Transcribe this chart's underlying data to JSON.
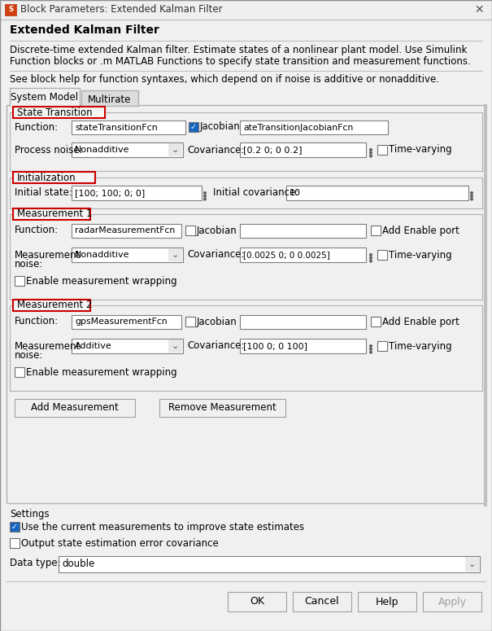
{
  "title_bar": "Block Parameters: Extended Kalman Filter",
  "header_title": "Extended Kalman Filter",
  "desc1": "Discrete-time extended Kalman filter. Estimate states of a nonlinear plant model. Use Simulink",
  "desc2": "Function blocks or .m MATLAB Functions to specify state transition and measurement functions.",
  "desc3": "See block help for function syntaxes, which depend on if noise is additive or nonadditive.",
  "tab1": "System Model",
  "tab2": "Multirate",
  "section1": "State Transition",
  "section2": "Initialization",
  "section3": "Measurement 1",
  "section4": "Measurement 2",
  "func_label": "Function:",
  "func_value": "stateTransitionFcn",
  "jacobian_label": "Jacobian",
  "jacobian_value": "ateTransitionJacobianFcn",
  "process_noise_label": "Process noise:",
  "process_noise_value": "Nonadditive",
  "cov_label": "Covariance:",
  "cov_value1": "[0.2 0; 0 0.2]",
  "time_varying": "Time-varying",
  "init_state_label": "Initial state:",
  "init_state_value": "[100; 100; 0; 0]",
  "init_cov_label": "Initial covariance:",
  "init_cov_value": "10",
  "m1_func": "radarMeasurementFcn",
  "m1_noise": "Nonadditive",
  "m1_cov": "[0.0025 0; 0 0.0025]",
  "add_enable": "Add Enable port",
  "enable_wrap": "Enable measurement wrapping",
  "m2_func": "gpsMeasurementFcn",
  "m2_noise": "Additive",
  "m2_cov": "[100 0; 0 100]",
  "btn_add": "Add Measurement",
  "btn_remove": "Remove Measurement",
  "settings": "Settings",
  "check1": "Use the current measurements to improve state estimates",
  "check2": "Output state estimation error covariance",
  "dtype_label": "Data type:",
  "dtype_value": "double",
  "ok": "OK",
  "cancel": "Cancel",
  "help": "Help",
  "apply": "Apply",
  "bg": "#f0f0f0",
  "white": "#ffffff",
  "light_gray": "#f5f5f5",
  "border": "#b0b0b0",
  "dark_border": "#808080",
  "red": "#cc0000",
  "blue": "#1565c0",
  "text": "#000000",
  "gray_text": "#a0a0a0",
  "tab_inactive": "#dcdcdc",
  "inner_panel": "#f8f8f8"
}
